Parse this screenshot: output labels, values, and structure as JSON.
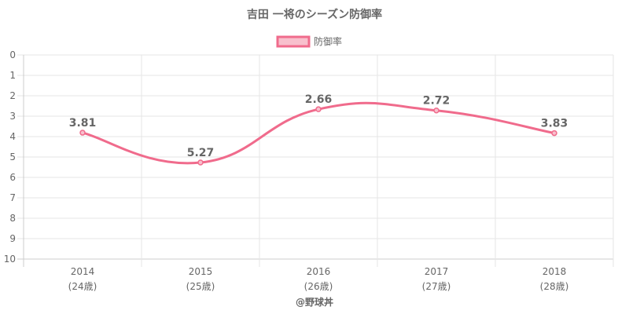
{
  "chart_data": {
    "type": "line",
    "title": "吉田 一将のシーズン防御率",
    "categories": [
      "2014",
      "2015",
      "2016",
      "2017",
      "2018"
    ],
    "category_sublabels": [
      "(24歳)",
      "(25歳)",
      "(26歳)",
      "(27歳)",
      "(28歳)"
    ],
    "series": [
      {
        "name": "防御率",
        "values": [
          3.81,
          5.27,
          2.66,
          2.72,
          3.83
        ],
        "color": "#f06b8c"
      }
    ],
    "data_labels": [
      "3.81",
      "5.27",
      "2.66",
      "2.72",
      "3.83"
    ],
    "ylim": [
      0,
      10
    ],
    "y_reversed": true,
    "y_ticks": [
      "0",
      "1",
      "2",
      "3",
      "4",
      "5",
      "6",
      "7",
      "8",
      "9",
      "10"
    ],
    "grid": true,
    "legend_position": "top-center",
    "xlabel": "",
    "ylabel": ""
  },
  "footer": {
    "credit": "@野球丼"
  }
}
